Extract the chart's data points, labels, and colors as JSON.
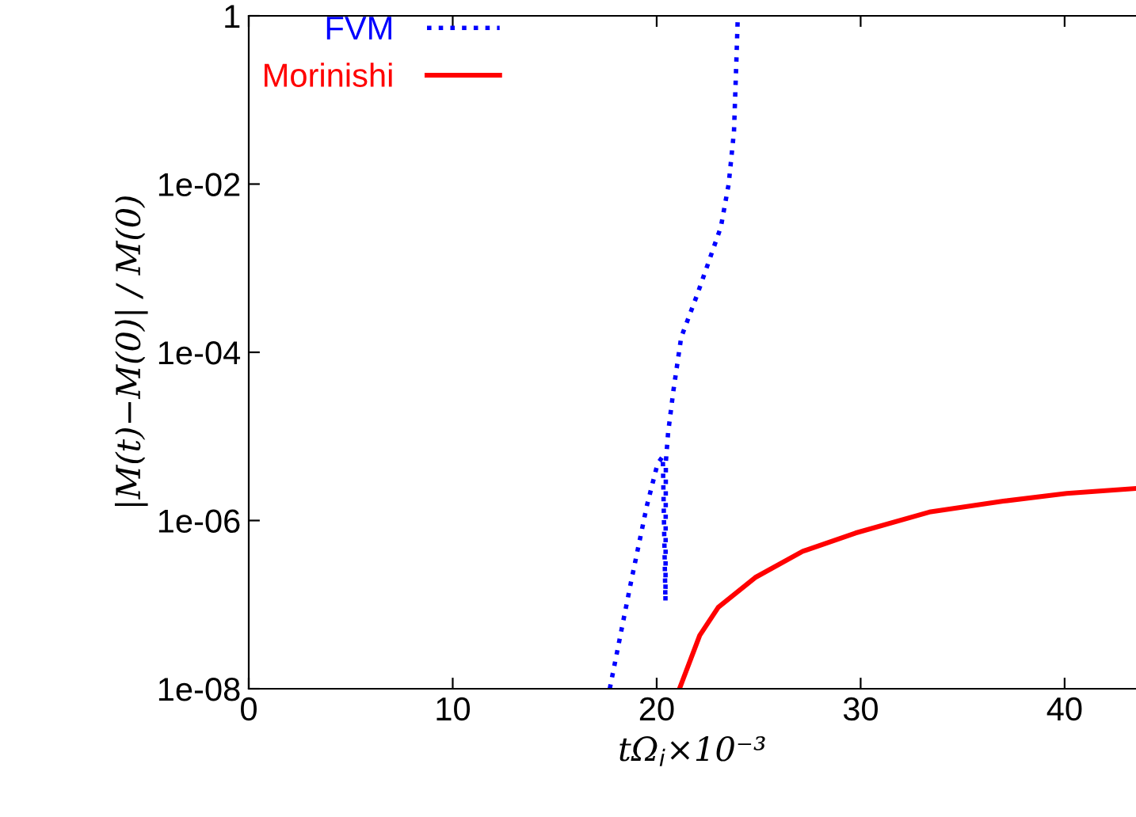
{
  "chart_data": {
    "type": "line",
    "xlabel": "tΩ$_{i}$×10⁻³",
    "ylabel": "|M(t)−M(0)| / M(0)",
    "log": "y",
    "xlim": [
      0,
      43.5
    ],
    "xticks": [
      0,
      10,
      20,
      30,
      40
    ],
    "ylim": [
      1e-08,
      1
    ],
    "yticks": [
      {
        "value": 1e-08,
        "label": "1e-08"
      },
      {
        "value": 1e-06,
        "label": "1e-06"
      },
      {
        "value": 0.0001,
        "label": "1e-04"
      },
      {
        "value": 0.01,
        "label": "1e-02"
      },
      1
    ],
    "grid": false,
    "legend": "top left",
    "series": [
      {
        "name": "FVM",
        "color": "#0000ff",
        "line_style": "dotted",
        "x": [
          17.7,
          18.75,
          19.52,
          20.04,
          20.3,
          20.43,
          20.45,
          20.56,
          20.82,
          21.2,
          21.98,
          22.5,
          23.15,
          23.53,
          23.79,
          23.92,
          23.97
        ],
        "values": [
          1e-08,
          1.9e-07,
          1.5e-06,
          4.7e-06,
          5.8e-06,
          1.1e-07,
          5e-06,
          1.1e-05,
          3.5e-05,
          0.00015,
          0.00048,
          0.0011,
          0.0031,
          0.01,
          0.042,
          0.36,
          0.87
        ]
      },
      {
        "name": "Morinishi",
        "color": "#ff0000",
        "line_style": "solid",
        "x": [
          21.15,
          22.11,
          23.02,
          24.83,
          27.16,
          29.75,
          33.37,
          36.99,
          40.1,
          43.47
        ],
        "values": [
          1.05e-08,
          4.3e-08,
          9.3e-08,
          2.1e-07,
          4.3e-07,
          7.1e-07,
          1.26e-06,
          1.7e-06,
          2.1e-06,
          2.4e-06
        ]
      }
    ]
  }
}
